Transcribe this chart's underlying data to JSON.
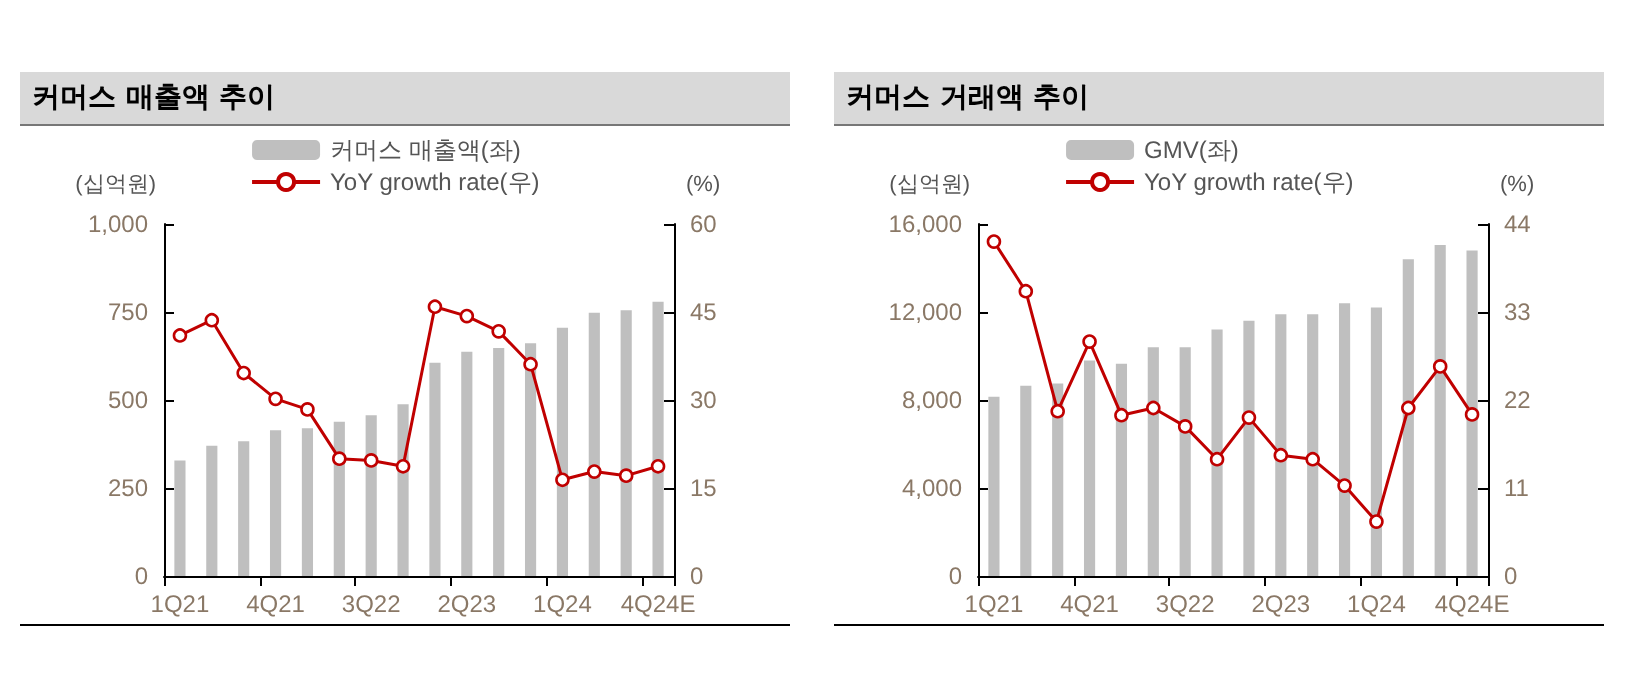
{
  "chart_data": [
    {
      "type": "bar",
      "title": "커머스 매출액 추이",
      "ylabel": "(십억원)",
      "y2label": "(%)",
      "categories": [
        "1Q21",
        null,
        null,
        "4Q21",
        null,
        null,
        "3Q22",
        null,
        null,
        "2Q23",
        null,
        null,
        "1Q24",
        null,
        null,
        "4Q24E"
      ],
      "ylim": [
        0,
        1000
      ],
      "yticks": [
        0,
        250,
        500,
        750,
        {
          "value": 1000,
          "label": "1,000"
        }
      ],
      "y2lim": [
        0,
        60
      ],
      "y2ticks": [
        0,
        15,
        30,
        45,
        60
      ],
      "legend": "top",
      "grid": false,
      "series": [
        {
          "name": "커머스 매출액(좌)",
          "color": "#bfbfbf",
          "values": [
            328,
            370,
            383,
            414,
            420,
            438,
            457,
            488,
            606,
            637,
            648,
            661,
            705,
            748,
            755,
            779
          ]
        },
        {
          "name": "YoY growth rate(우)",
          "type": "line",
          "axis": "y2",
          "color": "#c00000",
          "marker": "circle",
          "values": [
            41.0,
            43.6,
            34.6,
            30.2,
            28.4,
            20.0,
            19.7,
            18.7,
            45.9,
            44.3,
            41.7,
            36.1,
            16.4,
            17.8,
            17.1,
            18.7
          ]
        }
      ]
    },
    {
      "type": "bar",
      "title": "커머스 거래액 추이",
      "ylabel": "(십억원)",
      "y2label": "(%)",
      "categories": [
        "1Q21",
        null,
        null,
        "4Q21",
        null,
        null,
        "3Q22",
        null,
        null,
        "2Q23",
        null,
        null,
        "1Q24",
        null,
        null,
        "4Q24E"
      ],
      "ylim": [
        0,
        16000
      ],
      "yticks": [
        0,
        {
          "value": 4000,
          "label": "4,000"
        },
        {
          "value": 8000,
          "label": "8,000"
        },
        {
          "value": 12000,
          "label": "12,000"
        },
        {
          "value": 16000,
          "label": "16,000"
        }
      ],
      "y2lim": [
        0,
        44
      ],
      "y2ticks": [
        0,
        11,
        22,
        33,
        44
      ],
      "legend": "top",
      "grid": false,
      "series": [
        {
          "name": "GMV(좌)",
          "color": "#bfbfbf",
          "values": [
            8150,
            8650,
            8750,
            9800,
            9650,
            10400,
            10400,
            11200,
            11600,
            11900,
            11900,
            12400,
            12200,
            14400,
            15050,
            14800
          ]
        },
        {
          "name": "YoY growth rate(우)",
          "type": "line",
          "axis": "y2",
          "color": "#c00000",
          "marker": "circle",
          "values": [
            41.8,
            35.6,
            20.6,
            29.3,
            20.1,
            21.0,
            18.7,
            14.6,
            19.8,
            15.1,
            14.6,
            11.3,
            6.8,
            21.0,
            26.2,
            20.2
          ]
        }
      ]
    }
  ]
}
